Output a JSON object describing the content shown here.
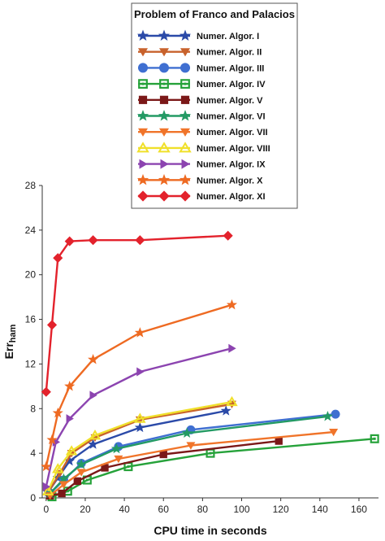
{
  "chart_data": {
    "type": "line",
    "title": "",
    "xlabel": "CPU time in seconds",
    "ylabel": "Err",
    "ylabel_sub": "ham",
    "xlim": [
      -2,
      170
    ],
    "ylim": [
      0,
      28
    ],
    "xticks": [
      0,
      20,
      40,
      60,
      80,
      100,
      120,
      140,
      160
    ],
    "yticks": [
      0,
      4,
      8,
      12,
      16,
      20,
      24,
      28
    ],
    "grid": false,
    "legend": {
      "title": "Problem of Franco and Palacios",
      "placement": "top-right"
    },
    "series": [
      {
        "name": "Numer. Algor. I",
        "color": "#2b4aa8",
        "marker": "star",
        "x": [
          1,
          6,
          12,
          24,
          48,
          92
        ],
        "y": [
          0.5,
          1.8,
          3.3,
          4.8,
          6.3,
          7.8
        ]
      },
      {
        "name": "Numer. Algor. II",
        "color": "#c8622c",
        "marker": "triangle-down",
        "x": [
          1,
          7,
          13,
          25,
          48,
          95
        ],
        "y": [
          0.5,
          2.2,
          4.0,
          5.4,
          7.0,
          8.4
        ]
      },
      {
        "name": "Numer. Algor. III",
        "color": "#3f6fd1",
        "marker": "circle",
        "x": [
          2,
          9,
          18,
          37,
          74,
          148
        ],
        "y": [
          0.4,
          1.6,
          3.1,
          4.6,
          6.1,
          7.5
        ]
      },
      {
        "name": "Numer. Algor. IV",
        "color": "#26a23a",
        "marker": "square-open",
        "x": [
          3,
          11,
          21,
          42,
          84,
          168
        ],
        "y": [
          0.1,
          0.6,
          1.6,
          2.8,
          4.0,
          5.3
        ]
      },
      {
        "name": "Numer. Algor. V",
        "color": "#7b1818",
        "marker": "square",
        "x": [
          2,
          8,
          16,
          30,
          60,
          119
        ],
        "y": [
          0.2,
          0.4,
          1.5,
          2.7,
          3.9,
          5.1
        ]
      },
      {
        "name": "Numer. Algor. VI",
        "color": "#239a64",
        "marker": "star",
        "x": [
          2,
          9,
          18,
          36,
          72,
          144
        ],
        "y": [
          0.4,
          1.7,
          3.0,
          4.4,
          5.8,
          7.3
        ]
      },
      {
        "name": "Numer. Algor. VII",
        "color": "#f0742a",
        "marker": "triangle-down",
        "x": [
          2,
          9,
          18,
          37,
          74,
          147
        ],
        "y": [
          0.2,
          1.2,
          2.3,
          3.5,
          4.7,
          5.9
        ]
      },
      {
        "name": "Numer. Algor. VIII",
        "color": "#f0e02a",
        "marker": "triangle-up-open",
        "x": [
          1,
          6,
          13,
          25,
          48,
          95
        ],
        "y": [
          0.6,
          2.6,
          4.2,
          5.6,
          7.1,
          8.6
        ]
      },
      {
        "name": "Numer. Algor. IX",
        "color": "#8c44b0",
        "marker": "triangle-right",
        "x": [
          0,
          5,
          12,
          24,
          48,
          95
        ],
        "y": [
          1.0,
          5.0,
          7.1,
          9.2,
          11.3,
          13.4
        ]
      },
      {
        "name": "Numer. Algor. X",
        "color": "#ee6a22",
        "marker": "star",
        "x": [
          0,
          3,
          6,
          12,
          24,
          48,
          95
        ],
        "y": [
          2.8,
          5.2,
          7.6,
          10.0,
          12.4,
          14.8,
          17.3
        ]
      },
      {
        "name": "Numer. Algor. XI",
        "color": "#e3222c",
        "marker": "diamond",
        "x": [
          0,
          3,
          6,
          12,
          24,
          48,
          93
        ],
        "y": [
          9.5,
          15.5,
          21.5,
          23.0,
          23.1,
          23.1,
          23.5
        ]
      }
    ]
  }
}
